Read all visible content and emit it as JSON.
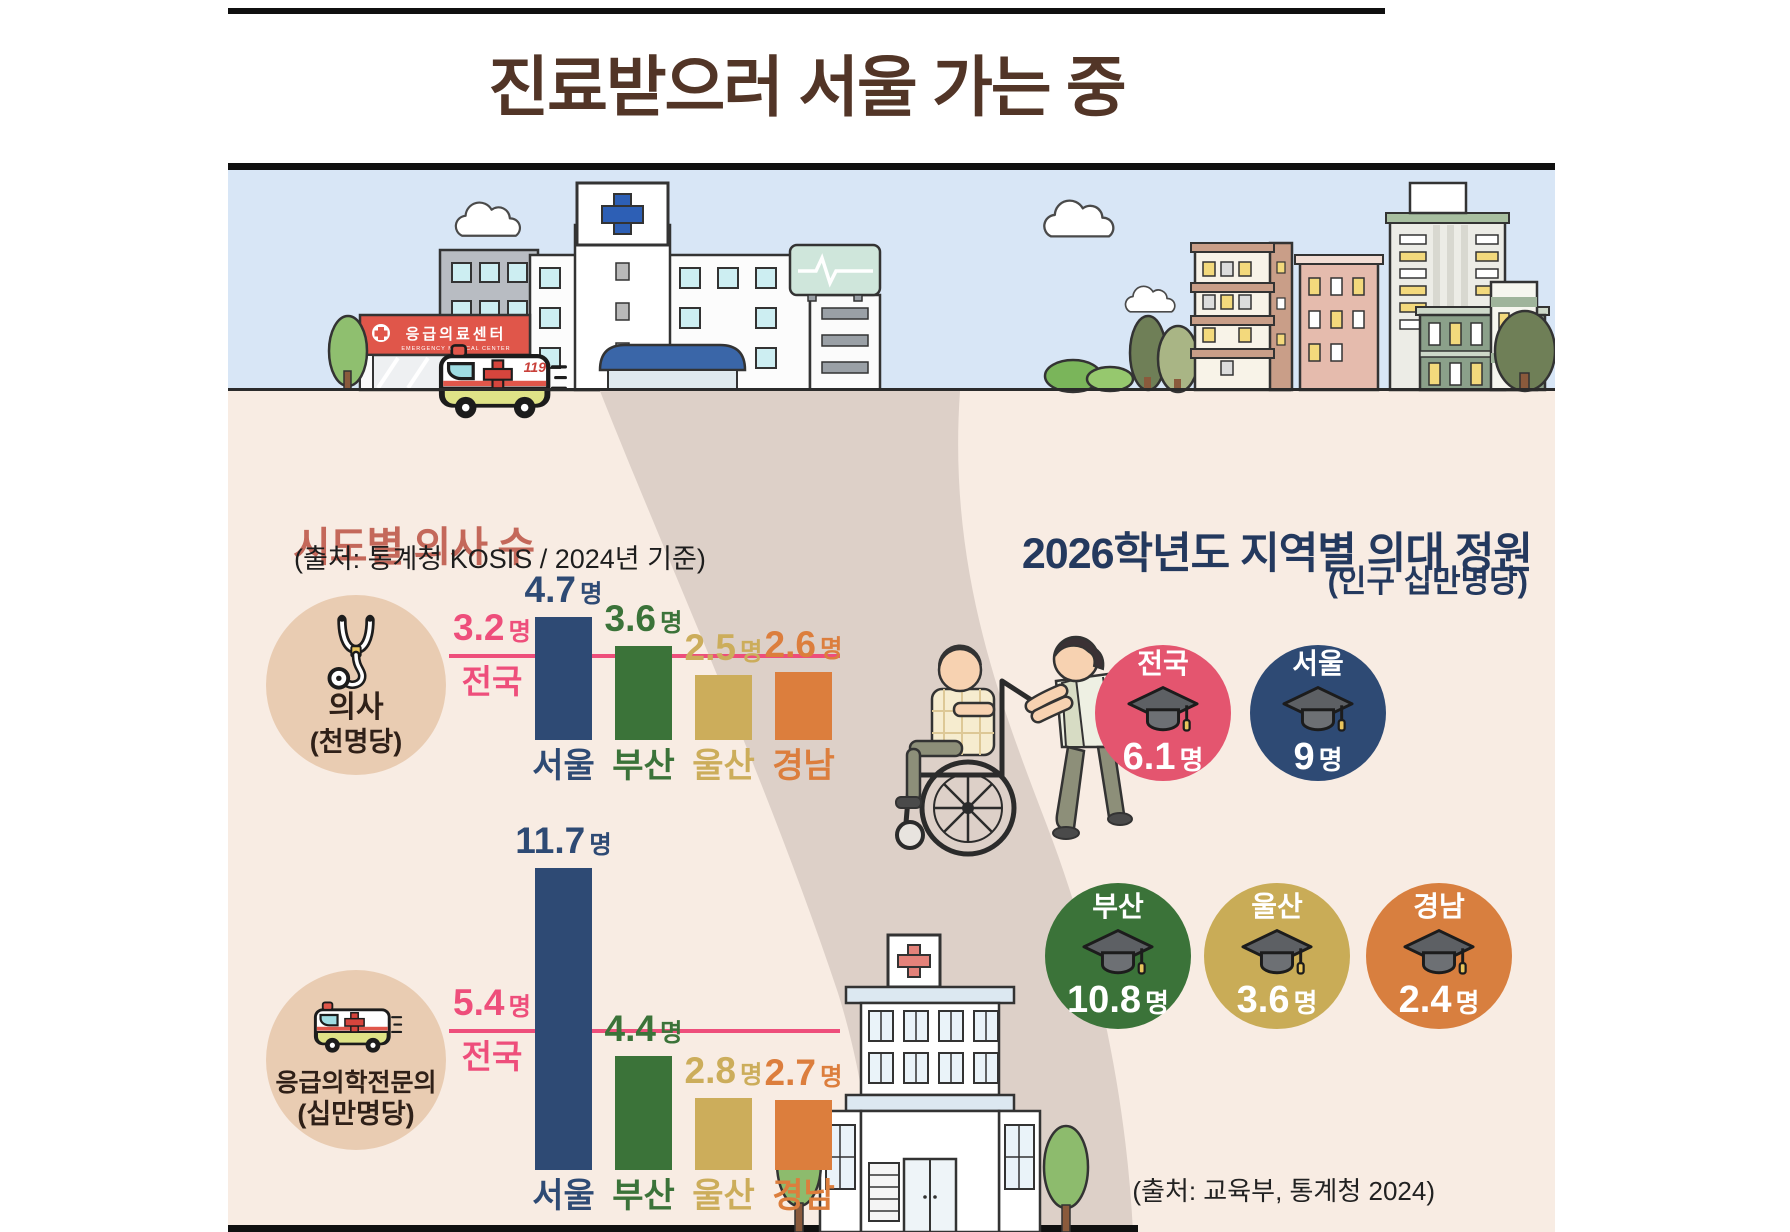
{
  "page": {
    "title": "진료받으러 서울 가는 중"
  },
  "units": {
    "person": "명"
  },
  "scene": {
    "emergency_sign": "응급의료센터",
    "emergency_sign_en": "EMERGENCY MEDICAL CENTER",
    "ambulance_number": "119"
  },
  "doctors_section": {
    "title": "시도별 의사 수",
    "source": "(출처: 통계청 KOSIS / 2024년 기준)",
    "national_label": "전국",
    "charts": [
      {
        "name": "의사",
        "unit": "(천명당)",
        "icon": "stethoscope-icon",
        "national_value": 3.2,
        "bars": [
          {
            "region": "서울",
            "value": 4.7,
            "color": "#2e4a74"
          },
          {
            "region": "부산",
            "value": 3.6,
            "color": "#3b7339"
          },
          {
            "region": "울산",
            "value": 2.5,
            "color": "#ccad5b"
          },
          {
            "region": "경남",
            "value": 2.6,
            "color": "#dc7e3d"
          }
        ]
      },
      {
        "name": "응급의학전문의",
        "unit": "(십만명당)",
        "icon": "ambulance-icon",
        "national_value": 5.4,
        "bars": [
          {
            "region": "서울",
            "value": 11.7,
            "color": "#2e4a74"
          },
          {
            "region": "부산",
            "value": 4.4,
            "color": "#3b7339"
          },
          {
            "region": "울산",
            "value": 2.8,
            "color": "#ccad5b"
          },
          {
            "region": "경남",
            "value": 2.7,
            "color": "#dc7e3d"
          }
        ]
      }
    ]
  },
  "quota_section": {
    "title": "2026학년도 지역별 의대 정원",
    "subtitle": "(인구 십만명당)",
    "source": "(출처: 교육부, 통계청 2024)",
    "circles": [
      {
        "region": "전국",
        "value": 6.1,
        "color": "#e4556f"
      },
      {
        "region": "서울",
        "value": 9,
        "color": "#2e4a74"
      },
      {
        "region": "부산",
        "value": 10.8,
        "color": "#3b7339"
      },
      {
        "region": "울산",
        "value": 3.6,
        "color": "#c9ac57"
      },
      {
        "region": "경남",
        "value": 2.4,
        "color": "#d87f3f"
      }
    ]
  },
  "chart_data": [
    {
      "type": "bar",
      "title": "시도별 의사 수 — 의사 (천명당)",
      "categories": [
        "서울",
        "부산",
        "울산",
        "경남"
      ],
      "values": [
        4.7,
        3.6,
        2.5,
        2.6
      ],
      "reference_line": {
        "label": "전국",
        "value": 3.2
      },
      "unit": "명",
      "ylim": [
        0,
        5
      ],
      "source": "통계청 KOSIS / 2024년 기준"
    },
    {
      "type": "bar",
      "title": "시도별 의사 수 — 응급의학전문의 (십만명당)",
      "categories": [
        "서울",
        "부산",
        "울산",
        "경남"
      ],
      "values": [
        11.7,
        4.4,
        2.8,
        2.7
      ],
      "reference_line": {
        "label": "전국",
        "value": 5.4
      },
      "unit": "명",
      "ylim": [
        0,
        12
      ],
      "source": "통계청 KOSIS / 2024년 기준"
    },
    {
      "type": "pictogram",
      "title": "2026학년도 지역별 의대 정원 (인구 십만명당)",
      "categories": [
        "전국",
        "서울",
        "부산",
        "울산",
        "경남"
      ],
      "values": [
        6.1,
        9,
        10.8,
        3.6,
        2.4
      ],
      "unit": "명",
      "source": "교육부, 통계청 2024"
    }
  ]
}
